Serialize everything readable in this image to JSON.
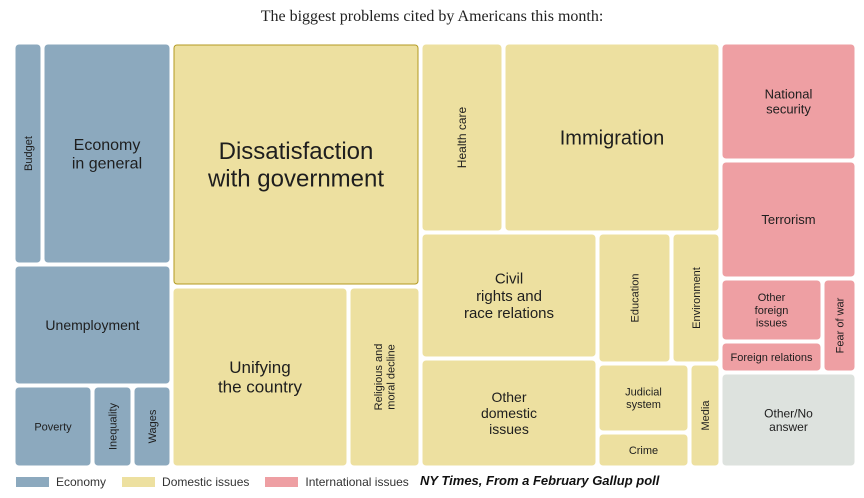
{
  "chart_data": {
    "type": "treemap",
    "title": "The biggest problems cited by Americans this month:",
    "source": "NY Times, From a February Gallup poll",
    "legend": [
      {
        "key": "economy",
        "label": "Economy",
        "color": "#8ca9be"
      },
      {
        "key": "domestic",
        "label": "Domestic issues",
        "color": "#ede0a0"
      },
      {
        "key": "international",
        "label": "International issues",
        "color": "#ee9fa3"
      }
    ],
    "other_color": "#dde2de",
    "highlight_color": "#b39a22",
    "tiles": [
      {
        "label": "Budget",
        "group": "economy"
      },
      {
        "label": "Economy\nin general",
        "group": "economy"
      },
      {
        "label": "Unemployment",
        "group": "economy"
      },
      {
        "label": "Poverty",
        "group": "economy"
      },
      {
        "label": "Inequality",
        "group": "economy"
      },
      {
        "label": "Wages",
        "group": "economy"
      },
      {
        "label": "Dissatisfaction\nwith government",
        "group": "domestic",
        "highlight": true
      },
      {
        "label": "Unifying\nthe country",
        "group": "domestic"
      },
      {
        "label": "Religious and\nmoral decline",
        "group": "domestic"
      },
      {
        "label": "Health care",
        "group": "domestic"
      },
      {
        "label": "Immigration",
        "group": "domestic"
      },
      {
        "label": "Civil\nrights and\nrace relations",
        "group": "domestic"
      },
      {
        "label": "Education",
        "group": "domestic"
      },
      {
        "label": "Environment",
        "group": "domestic"
      },
      {
        "label": "Other\ndomestic\nissues",
        "group": "domestic"
      },
      {
        "label": "Judicial\nsystem",
        "group": "domestic"
      },
      {
        "label": "Media",
        "group": "domestic"
      },
      {
        "label": "Crime",
        "group": "domestic"
      },
      {
        "label": "National\nsecurity",
        "group": "international"
      },
      {
        "label": "Terrorism",
        "group": "international"
      },
      {
        "label": "Other\nforeign\nissues",
        "group": "international"
      },
      {
        "label": "Fear of war",
        "group": "international"
      },
      {
        "label": "Foreign relations",
        "group": "international"
      },
      {
        "label": "Other/No\nanswer",
        "group": "other"
      }
    ]
  }
}
